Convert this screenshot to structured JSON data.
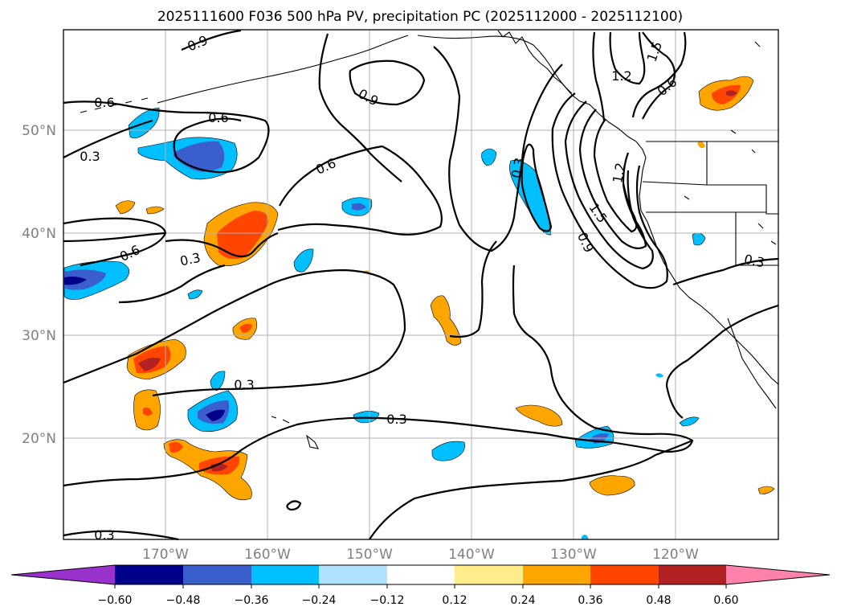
{
  "title": "2025111600 F036 500 hPa PV, precipitation PC (2025112000 - 2025112100)",
  "map": {
    "lat_labels": [
      "50°N",
      "40°N",
      "30°N",
      "20°N"
    ],
    "lon_labels": [
      "170°W",
      "160°W",
      "150°W",
      "140°W",
      "130°W",
      "120°W"
    ],
    "contour_labels": [
      "0.9",
      "0.6",
      "0.3",
      "0.6",
      "0.9",
      "0.6",
      "0.6",
      "0.3",
      "0.3",
      "0.3",
      "0.3",
      "1.2",
      "1.5",
      "0.6",
      "1.2",
      "1.5",
      "0.9",
      "0.3",
      "0.3"
    ]
  },
  "colorbar": {
    "ticks": [
      "−0.60",
      "−0.48",
      "−0.36",
      "−0.24",
      "−0.12",
      "0.12",
      "0.24",
      "0.36",
      "0.48",
      "0.60"
    ],
    "colors": [
      "#9932cc",
      "#00008b",
      "#3a5fcd",
      "#00bfff",
      "#b0e2ff",
      "#ffffff",
      "#ffec8b",
      "#ffa500",
      "#ff4500",
      "#b22222",
      "#ff82ab"
    ]
  }
}
